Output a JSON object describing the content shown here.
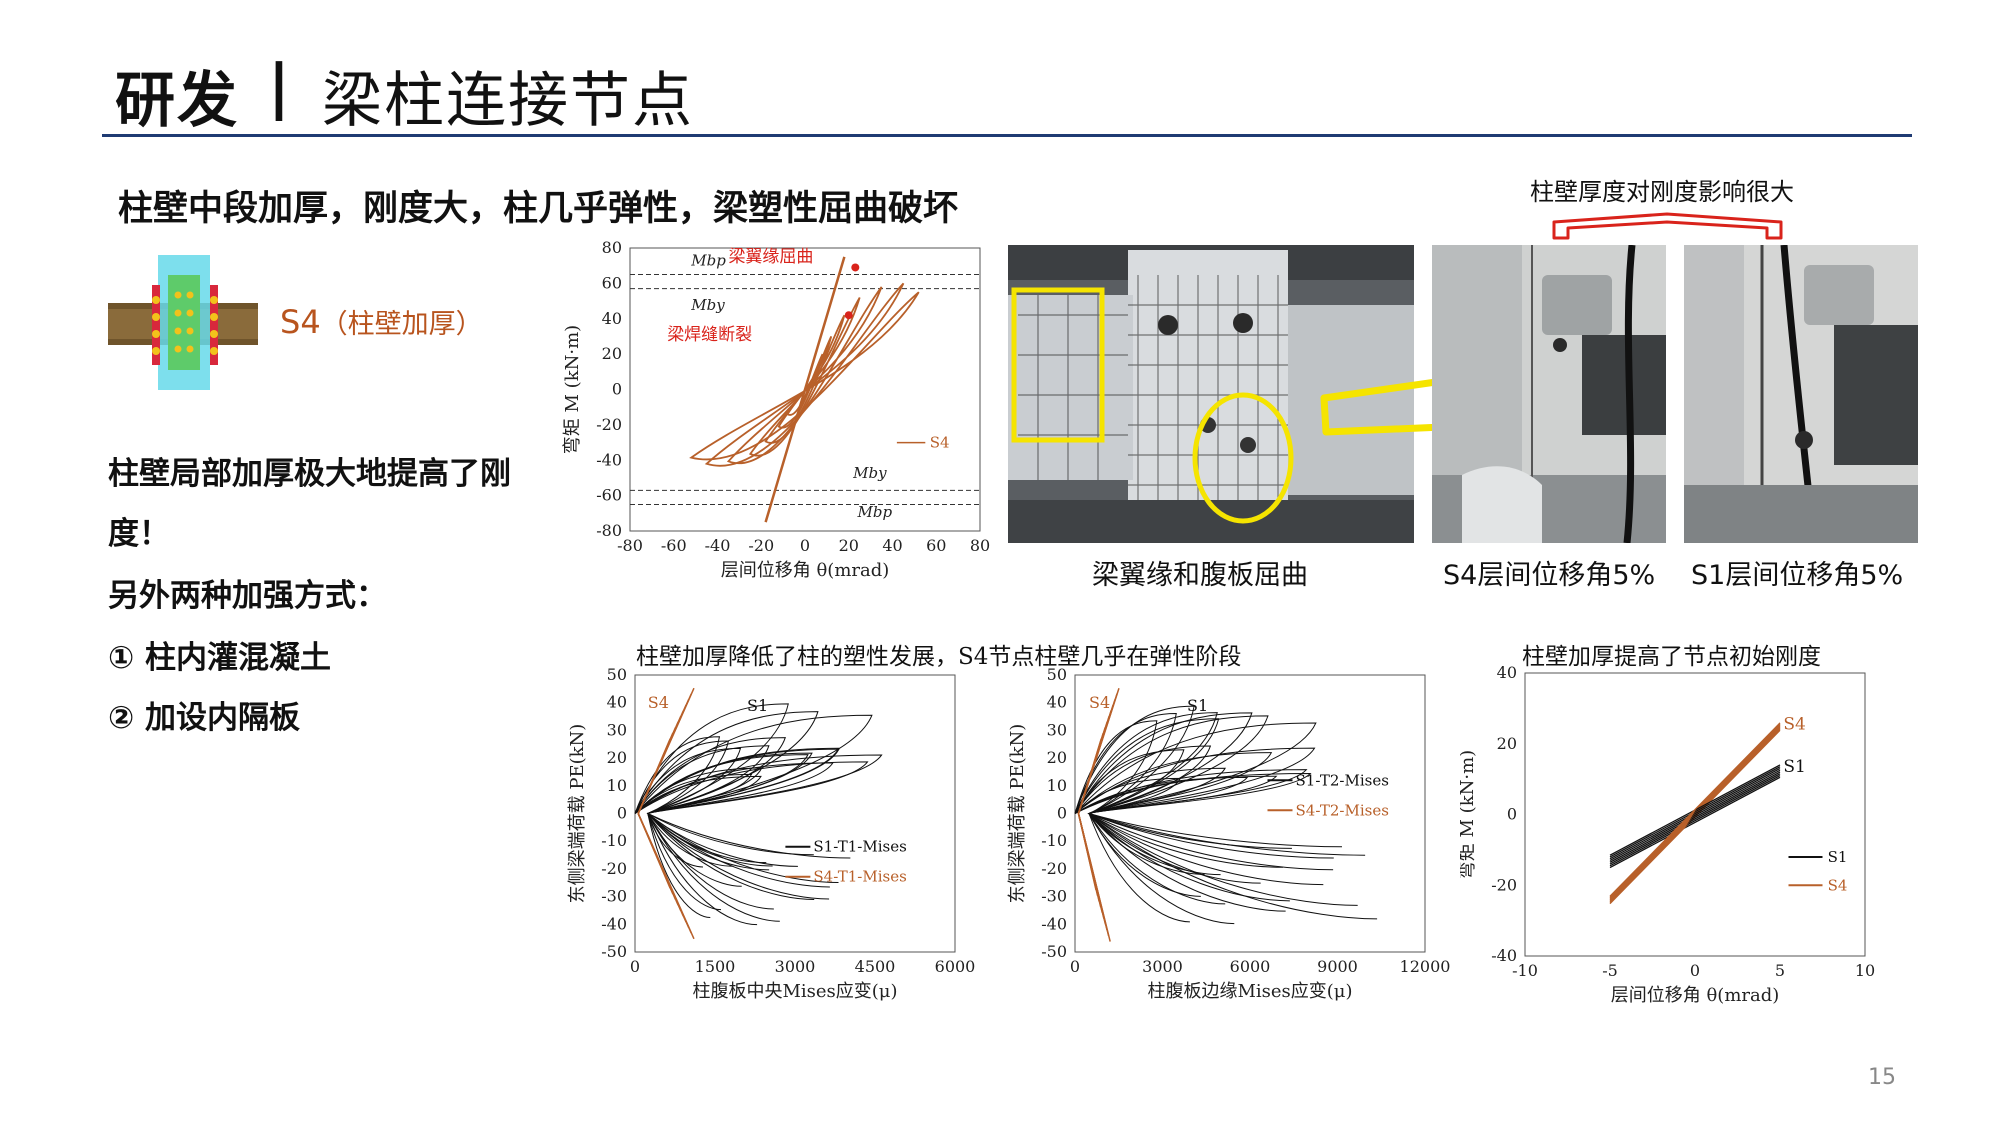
{
  "header": {
    "title_main": "研发",
    "separator": "|",
    "title_sub": "梁柱连接节点"
  },
  "headline": "柱壁中段加厚，刚度大，柱几乎弹性，梁塑性屈曲破坏",
  "specimen": {
    "label": "S4",
    "sublabel": "（柱壁加厚）"
  },
  "body": {
    "line1": "柱壁局部加厚极大地提高了刚",
    "line2": "度！",
    "line3": "另外两种加强方式：",
    "item1": "①   柱内灌混凝土",
    "item2": "②   加设内隔板"
  },
  "photos": {
    "caption_main": "梁翼缘和腹板屈曲",
    "caption_s4": "S4层间位移角5%",
    "caption_s1": "S1层间位移角5%",
    "note": "柱壁厚度对刚度影响很大"
  },
  "colors": {
    "s4": "#b8602a",
    "s1": "#111111",
    "red": "#d9231b",
    "yellow": "#f5e400",
    "rule": "#1f3b73"
  },
  "chart_data": [
    {
      "type": "line",
      "name": "hysteresis",
      "xlabel": "层间位移角 θ(mrad)",
      "ylabel": "弯矩 M (kN·m)",
      "xlim": [
        -80,
        80
      ],
      "ylim": [
        -80,
        80
      ],
      "xticks": [
        "-80",
        "-60",
        "-40",
        "-20",
        "0",
        "20",
        "40",
        "60",
        "80"
      ],
      "yticks": [
        "80",
        "60",
        "40",
        "20",
        "0",
        "-20",
        "-40",
        "-60",
        "-80"
      ],
      "ref_lines": [
        {
          "label": "Mbp",
          "value": 65
        },
        {
          "label": "Mby",
          "value": 57
        },
        {
          "label": "Mby",
          "value": -57
        },
        {
          "label": "Mbp",
          "value": -65
        }
      ],
      "annotations": [
        {
          "text": "梁翼缘屈曲",
          "x": 23,
          "y": 69
        },
        {
          "text": "梁焊缝断裂",
          "x": 20,
          "y": 42
        }
      ],
      "legend": [
        "S4"
      ],
      "legend_position": "right"
    },
    {
      "type": "line",
      "name": "strain-T1",
      "title": "柱壁加厚降低了柱的塑性发展，S4节点柱壁几乎在弹性阶段",
      "xlabel": "柱腹板中央Mises应变(μ)",
      "ylabel": "东侧梁端荷载 PE(kN)",
      "xlim": [
        0,
        6000
      ],
      "ylim": [
        -50,
        50
      ],
      "xticks": [
        "0",
        "1500",
        "3000",
        "4500",
        "6000"
      ],
      "yticks": [
        "50",
        "40",
        "30",
        "20",
        "10",
        "0",
        "-10",
        "-20",
        "-30",
        "-40",
        "-50"
      ],
      "series": [
        {
          "name": "S1-T1-Mises",
          "peak_x": 4900,
          "peak_y": 40,
          "min_x": 4200,
          "min_y": -41
        },
        {
          "name": "S4-T1-Mises",
          "peak_x": 1100,
          "peak_y": 45,
          "min_x": 1100,
          "min_y": -45
        }
      ],
      "labels": [
        "S4",
        "S1"
      ],
      "legend_position": "bottom-right"
    },
    {
      "type": "line",
      "name": "strain-T2",
      "xlabel": "柱腹板边缘Mises应变(μ)",
      "ylabel": "东侧梁端荷载 PE(kN)",
      "xlim": [
        0,
        12000
      ],
      "ylim": [
        -50,
        50
      ],
      "xticks": [
        "0",
        "3000",
        "6000",
        "9000",
        "12000"
      ],
      "yticks": [
        "50",
        "40",
        "30",
        "20",
        "10",
        "0",
        "-10",
        "-20",
        "-30",
        "-40",
        "-50"
      ],
      "series": [
        {
          "name": "S1-T2-Mises",
          "peak_x": 9000,
          "peak_y": 40,
          "min_x": 11500,
          "min_y": -40
        },
        {
          "name": "S4-T2-Mises",
          "peak_x": 1500,
          "peak_y": 45,
          "min_x": 1200,
          "min_y": -46
        }
      ],
      "labels": [
        "S4",
        "S1"
      ],
      "legend_position": "right"
    },
    {
      "type": "line",
      "name": "initial-stiffness",
      "title": "柱壁加厚提高了节点初始刚度",
      "xlabel": "层间位移角 θ(mrad)",
      "ylabel": "弯矩 M (kN·m)",
      "xlim": [
        -10,
        10
      ],
      "ylim": [
        -40,
        40
      ],
      "xticks": [
        "-10",
        "-5",
        "0",
        "5",
        "10"
      ],
      "yticks": [
        "40",
        "20",
        "0",
        "-20",
        "-40"
      ],
      "series": [
        {
          "name": "S1",
          "x": [
            -5,
            5
          ],
          "y": [
            -13,
            12.5
          ]
        },
        {
          "name": "S4",
          "x": [
            -5,
            5
          ],
          "y": [
            -24,
            25
          ]
        }
      ],
      "labels": [
        "S4",
        "S1"
      ],
      "legend_position": "right"
    }
  ],
  "page_number": "15"
}
